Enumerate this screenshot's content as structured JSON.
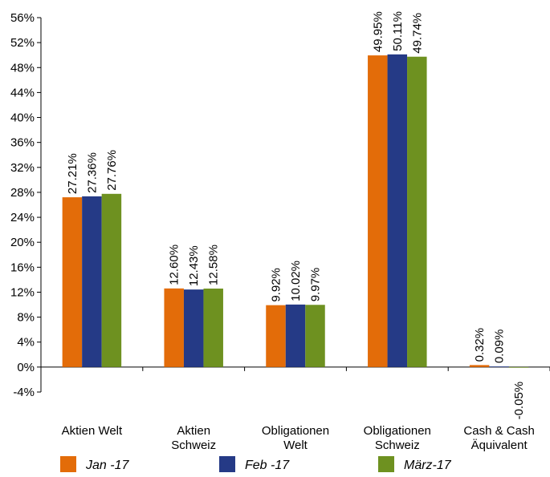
{
  "chart_data": {
    "type": "bar",
    "title": "",
    "xlabel": "",
    "ylabel": "",
    "ylim": [
      -4,
      56
    ],
    "yticks": [
      -4,
      0,
      4,
      8,
      12,
      16,
      20,
      24,
      28,
      32,
      36,
      40,
      44,
      48,
      52,
      56
    ],
    "ytick_labels": [
      "-4%",
      "0%",
      "4%",
      "8%",
      "12%",
      "16%",
      "20%",
      "24%",
      "28%",
      "32%",
      "36%",
      "40%",
      "44%",
      "48%",
      "52%",
      "56%"
    ],
    "categories": [
      [
        "Aktien Welt"
      ],
      [
        "Aktien",
        "Schweiz"
      ],
      [
        "Obligationen",
        "Welt"
      ],
      [
        "Obligationen",
        "Schweiz"
      ],
      [
        "Cash & Cash",
        "Äquivalent"
      ]
    ],
    "series": [
      {
        "name": "Jan -17",
        "color": "#E36C09",
        "values": [
          27.21,
          12.6,
          9.92,
          49.95,
          0.32
        ],
        "labels": [
          "27.21%",
          "12.60%",
          "9.92%",
          "49.95%",
          "0.32%"
        ]
      },
      {
        "name": "Feb -17",
        "color": "#253A86",
        "values": [
          27.36,
          12.43,
          10.02,
          50.11,
          0.09
        ],
        "labels": [
          "27.36%",
          "12.43%",
          "10.02%",
          "50.11%",
          "0.09%"
        ]
      },
      {
        "name": "März-17",
        "color": "#6E9120",
        "values": [
          27.76,
          12.58,
          9.97,
          49.74,
          -0.05
        ],
        "labels": [
          "27.76%",
          "12.58%",
          "9.97%",
          "49.74%",
          "-0.05%"
        ]
      }
    ],
    "grid": false,
    "legend_position": "bottom"
  }
}
